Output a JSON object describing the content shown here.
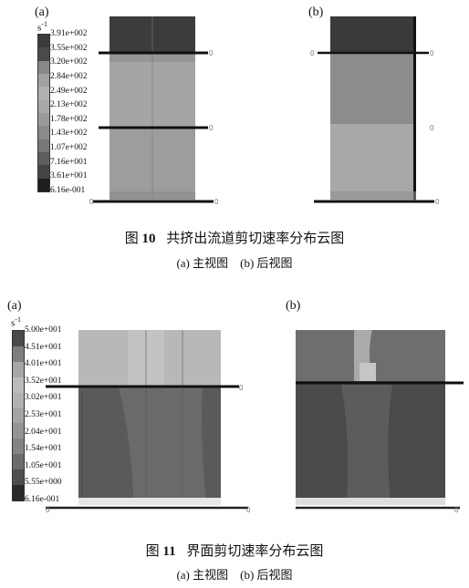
{
  "figure10": {
    "label_a": "(a)",
    "label_b": "(b)",
    "unit_base": "s",
    "unit_exp": "-1",
    "scale_values": [
      "3.91e+002",
      "3.55e+002",
      "3.20e+002",
      "2.84e+002",
      "2.49e+002",
      "2.13e+002",
      "1.78e+002",
      "1.43e+002",
      "1.07e+002",
      "7.16e+001",
      "3.61e+001",
      "6.16e-001"
    ],
    "scale_colors": [
      "#3b3b3b",
      "#4a4a4a",
      "#888888",
      "#a2a2a2",
      "#b0b0b0",
      "#a8a8a8",
      "#9a9a9a",
      "#8a8a8a",
      "#777777",
      "#5e5e5e",
      "#444444",
      "#1e1e1e"
    ],
    "caption_prefix": "图",
    "caption_num": "10",
    "caption_text": "共挤出流道剪切速率分布云图",
    "subcaption": "(a) 主视图　(b) 后视图",
    "axis_marker": "0"
  },
  "figure11": {
    "label_a": "(a)",
    "label_b": "(b)",
    "unit_base": "s",
    "unit_exp": "-1",
    "scale_values": [
      "5.00e+001",
      "4.51e+001",
      "4.01e+001",
      "3.52e+001",
      "3.02e+001",
      "2.53e+001",
      "2.04e+001",
      "1.54e+001",
      "1.05e+001",
      "5.55e+000",
      "6.16e-001"
    ],
    "scale_colors": [
      "#4a4a4a",
      "#7e7e7e",
      "#a6a6a6",
      "#bcbcbc",
      "#b2b2b2",
      "#a4a4a4",
      "#949494",
      "#848484",
      "#6c6c6c",
      "#4e4e4e",
      "#2a2a2a"
    ],
    "caption_prefix": "图",
    "caption_num": "11",
    "caption_text": "界面剪切速率分布云图",
    "subcaption": "(a) 主视图　(b) 后视图",
    "axis_marker": "0"
  }
}
